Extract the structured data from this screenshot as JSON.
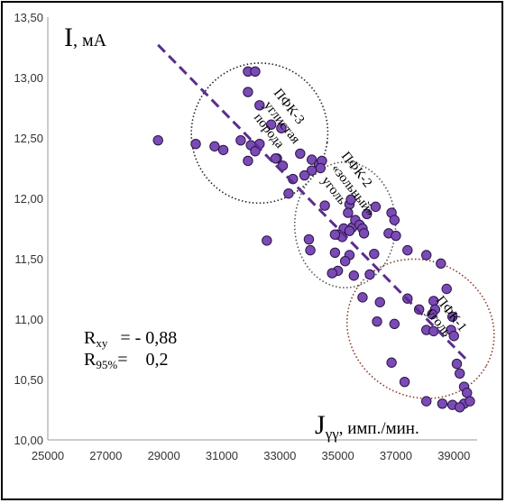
{
  "chart_data": {
    "type": "scatter",
    "title": "",
    "ylabel": {
      "main": "I",
      "unit": ", мА"
    },
    "xlabel": {
      "main": "J",
      "sub": "γγ",
      "unit": ", имп./мин."
    },
    "xlim": [
      25000,
      39800
    ],
    "ylim": [
      10.0,
      13.5
    ],
    "x_ticks": [
      25000,
      27000,
      29000,
      31000,
      33000,
      35000,
      37000,
      39000
    ],
    "x_tick_labels": [
      "25000",
      "27000",
      "29000",
      "31000",
      "33000",
      "35000",
      "37000",
      "39000"
    ],
    "y_ticks": [
      10.0,
      10.5,
      11.0,
      11.5,
      12.0,
      12.5,
      13.0,
      13.5
    ],
    "y_tick_labels": [
      "10,00",
      "10,50",
      "11,00",
      "11,50",
      "12,00",
      "12,50",
      "13,00",
      "13,50"
    ],
    "grid": false,
    "marker_color": "#7b4bb5",
    "marker_edge": "#2a1448",
    "trend_color": "#5b2d8c",
    "trendline": {
      "x": [
        28800,
        39450
      ],
      "y": [
        13.27,
        10.66
      ]
    },
    "points": [
      [
        28800,
        12.48
      ],
      [
        30100,
        12.45
      ],
      [
        30750,
        12.43
      ],
      [
        31050,
        12.4
      ],
      [
        31650,
        12.48
      ],
      [
        31900,
        13.05
      ],
      [
        32150,
        13.05
      ],
      [
        31900,
        12.88
      ],
      [
        32300,
        12.77
      ],
      [
        32700,
        12.61
      ],
      [
        32900,
        12.33
      ],
      [
        33050,
        12.58
      ],
      [
        32000,
        12.44
      ],
      [
        32150,
        12.39
      ],
      [
        32300,
        12.45
      ],
      [
        31900,
        12.31
      ],
      [
        32850,
        12.33
      ],
      [
        33100,
        12.27
      ],
      [
        33700,
        12.37
      ],
      [
        34100,
        12.32
      ],
      [
        34350,
        12.28
      ],
      [
        34450,
        12.31
      ],
      [
        34400,
        12.25
      ],
      [
        34100,
        12.23
      ],
      [
        33850,
        12.19
      ],
      [
        33450,
        12.16
      ],
      [
        33300,
        12.04
      ],
      [
        34550,
        11.94
      ],
      [
        35400,
        11.95
      ],
      [
        35450,
        11.99
      ],
      [
        35350,
        11.88
      ],
      [
        35200,
        11.75
      ],
      [
        35500,
        11.76
      ],
      [
        35600,
        11.82
      ],
      [
        35750,
        11.78
      ],
      [
        35850,
        11.75
      ],
      [
        35900,
        11.71
      ],
      [
        36000,
        11.87
      ],
      [
        35400,
        11.73
      ],
      [
        35000,
        11.7
      ],
      [
        35150,
        11.68
      ],
      [
        34900,
        11.7
      ],
      [
        36300,
        11.93
      ],
      [
        36850,
        11.88
      ],
      [
        36950,
        11.82
      ],
      [
        36750,
        11.71
      ],
      [
        37000,
        11.69
      ],
      [
        34000,
        11.66
      ],
      [
        32550,
        11.65
      ],
      [
        34050,
        11.57
      ],
      [
        34900,
        11.55
      ],
      [
        35400,
        11.53
      ],
      [
        36250,
        11.54
      ],
      [
        35250,
        11.48
      ],
      [
        37400,
        11.57
      ],
      [
        38050,
        11.53
      ],
      [
        38550,
        11.46
      ],
      [
        35000,
        11.4
      ],
      [
        34800,
        11.38
      ],
      [
        35550,
        11.36
      ],
      [
        36100,
        11.37
      ],
      [
        35850,
        11.18
      ],
      [
        36450,
        11.14
      ],
      [
        37400,
        11.17
      ],
      [
        38300,
        11.15
      ],
      [
        38750,
        11.25
      ],
      [
        37800,
        11.08
      ],
      [
        38350,
        11.08
      ],
      [
        38250,
        11.04
      ],
      [
        38950,
        11.02
      ],
      [
        36350,
        10.98
      ],
      [
        36950,
        10.96
      ],
      [
        38050,
        10.91
      ],
      [
        38300,
        10.9
      ],
      [
        38900,
        10.91
      ],
      [
        39000,
        10.86
      ],
      [
        36850,
        10.64
      ],
      [
        39100,
        10.63
      ],
      [
        39200,
        10.55
      ],
      [
        37300,
        10.48
      ],
      [
        39350,
        10.44
      ],
      [
        39450,
        10.39
      ],
      [
        38050,
        10.32
      ],
      [
        38600,
        10.3
      ],
      [
        39350,
        10.3
      ],
      [
        38950,
        10.29
      ],
      [
        39550,
        10.32
      ],
      [
        39200,
        10.27
      ]
    ],
    "ellipses": [
      {
        "name": "ПФК-3",
        "cx": 32300,
        "cy": 12.54,
        "rx_units": 2350,
        "ry_units": 0.58,
        "rotate": 8,
        "color": "#222222",
        "labels": [
          "ПФК-3",
          "углистая",
          "порода"
        ]
      },
      {
        "name": "ПФК-2",
        "cx": 35250,
        "cy": 11.78,
        "rx_units": 1740,
        "ry_units": 0.52,
        "rotate": 0,
        "color": "#555555",
        "labels": [
          "ПФК-2",
          "«зольный»",
          "уголь"
        ]
      },
      {
        "name": "ПФК-1",
        "cx": 37850,
        "cy": 10.92,
        "rx_units": 2600,
        "ry_units": 0.56,
        "rotate": 30,
        "color": "#8b3a2a",
        "labels": [
          "ПФК-1",
          "уголь"
        ]
      }
    ],
    "stats": {
      "rxy_main": "R",
      "rxy_sub": "xy",
      "rxy_value": "= - 0,88",
      "r95_main": "R",
      "r95_sub": "95%",
      "r95_value": "=    0,2"
    }
  }
}
